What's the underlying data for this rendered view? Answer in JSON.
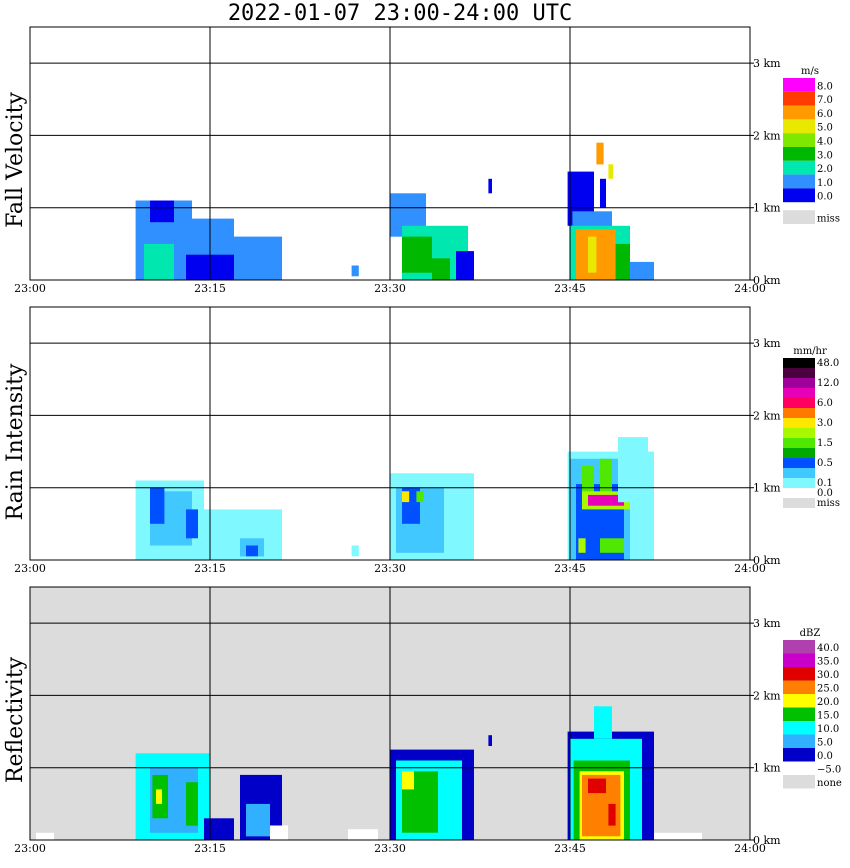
{
  "title": "2022-01-07   23:00-24:00 UTC",
  "chart_data": [
    {
      "type": "heatmap",
      "panel": "Fall Velocity",
      "unit": "m/s",
      "x_axis": {
        "range_minutes": [
          0,
          60
        ],
        "ticks": [
          {
            "label": "23:00",
            "min": 0
          },
          {
            "label": "23:15",
            "min": 15
          },
          {
            "label": "23:30",
            "min": 30
          },
          {
            "label": "23:45",
            "min": 45
          },
          {
            "label": "24:00",
            "min": 60
          }
        ]
      },
      "y_axis": {
        "range_km": [
          0,
          3.5
        ],
        "ticks": [
          {
            "label": "0 km",
            "km": 0
          },
          {
            "label": "1 km",
            "km": 1
          },
          {
            "label": "2 km",
            "km": 2
          },
          {
            "label": "3 km",
            "km": 3
          }
        ]
      },
      "background": "#ffffff",
      "legend": [
        {
          "label": "8.0",
          "color": "#ff00ff"
        },
        {
          "label": "7.0",
          "color": "#ff3b00"
        },
        {
          "label": "6.0",
          "color": "#ff9a00"
        },
        {
          "label": "5.0",
          "color": "#e8e800"
        },
        {
          "label": "4.0",
          "color": "#7fe800"
        },
        {
          "label": "3.0",
          "color": "#00b800"
        },
        {
          "label": "2.0",
          "color": "#00e8b0"
        },
        {
          "label": "1.0",
          "color": "#3090ff"
        },
        {
          "label": "0.0",
          "color": "#0000f0"
        },
        {
          "label": "miss",
          "color": "#dcdcdc",
          "gap": true
        }
      ],
      "cells": [
        {
          "t0": 8.8,
          "t1": 13.5,
          "h0": 0,
          "h1": 1.1,
          "c": "#3090ff"
        },
        {
          "t0": 13.5,
          "t1": 17.0,
          "h0": 0,
          "h1": 0.85,
          "c": "#3090ff"
        },
        {
          "t0": 17.0,
          "t1": 21.0,
          "h0": 0,
          "h1": 0.6,
          "c": "#3090ff"
        },
        {
          "t0": 9.5,
          "t1": 12.0,
          "h0": 0,
          "h1": 0.5,
          "c": "#00e8b0"
        },
        {
          "t0": 13.0,
          "t1": 17.0,
          "h0": 0,
          "h1": 0.35,
          "c": "#0000f0"
        },
        {
          "t0": 10.0,
          "t1": 12.0,
          "h0": 0.8,
          "h1": 1.1,
          "c": "#0000f0"
        },
        {
          "t0": 26.8,
          "t1": 27.4,
          "h0": 0.05,
          "h1": 0.2,
          "c": "#3090ff"
        },
        {
          "t0": 30.0,
          "t1": 33.0,
          "h0": 0.6,
          "h1": 1.2,
          "c": "#3090ff"
        },
        {
          "t0": 31.0,
          "t1": 36.5,
          "h0": 0,
          "h1": 0.75,
          "c": "#00e8b0"
        },
        {
          "t0": 31.0,
          "t1": 33.5,
          "h0": 0.1,
          "h1": 0.6,
          "c": "#00b800"
        },
        {
          "t0": 33.5,
          "t1": 35.0,
          "h0": 0,
          "h1": 0.3,
          "c": "#00b800"
        },
        {
          "t0": 35.5,
          "t1": 37.0,
          "h0": 0,
          "h1": 0.4,
          "c": "#0000f0"
        },
        {
          "t0": 44.8,
          "t1": 47.0,
          "h0": 0.75,
          "h1": 1.5,
          "c": "#0000f0"
        },
        {
          "t0": 45.2,
          "t1": 48.5,
          "h0": 0.7,
          "h1": 0.95,
          "c": "#3090ff"
        },
        {
          "t0": 45.0,
          "t1": 50.0,
          "h0": 0,
          "h1": 0.75,
          "c": "#00e8b0"
        },
        {
          "t0": 45.5,
          "t1": 48.8,
          "h0": 0,
          "h1": 0.7,
          "c": "#ff9a00"
        },
        {
          "t0": 46.5,
          "t1": 47.2,
          "h0": 0.1,
          "h1": 0.6,
          "c": "#e8e800"
        },
        {
          "t0": 48.8,
          "t1": 50.0,
          "h0": 0,
          "h1": 0.5,
          "c": "#00b800"
        },
        {
          "t0": 50.0,
          "t1": 52.0,
          "h0": 0,
          "h1": 0.25,
          "c": "#3090ff"
        },
        {
          "t0": 47.2,
          "t1": 47.8,
          "h0": 1.6,
          "h1": 1.9,
          "c": "#ff9a00"
        },
        {
          "t0": 48.2,
          "t1": 48.6,
          "h0": 1.4,
          "h1": 1.6,
          "c": "#e8e800"
        },
        {
          "t0": 47.5,
          "t1": 48.0,
          "h0": 1.0,
          "h1": 1.4,
          "c": "#0000f0"
        },
        {
          "t0": 38.2,
          "t1": 38.5,
          "h0": 1.2,
          "h1": 1.4,
          "c": "#0000f0"
        }
      ]
    },
    {
      "type": "heatmap",
      "panel": "Rain Intensity",
      "unit": "mm/hr",
      "x_axis": {
        "range_minutes": [
          0,
          60
        ],
        "ticks": [
          {
            "label": "23:00",
            "min": 0
          },
          {
            "label": "23:15",
            "min": 15
          },
          {
            "label": "23:30",
            "min": 30
          },
          {
            "label": "23:45",
            "min": 45
          },
          {
            "label": "24:00",
            "min": 60
          }
        ]
      },
      "y_axis": {
        "range_km": [
          0,
          3.5
        ],
        "ticks": [
          {
            "label": "0 km",
            "km": 0
          },
          {
            "label": "1 km",
            "km": 1
          },
          {
            "label": "2 km",
            "km": 2
          },
          {
            "label": "3 km",
            "km": 3
          }
        ]
      },
      "background": "#ffffff",
      "legend": [
        {
          "label": "48.0",
          "color": "#000000"
        },
        {
          "label": "",
          "color": "#4b0040"
        },
        {
          "label": "12.0",
          "color": "#a0009c"
        },
        {
          "label": "",
          "color": "#e800b8"
        },
        {
          "label": "6.0",
          "color": "#ff0060"
        },
        {
          "label": "",
          "color": "#ff7800"
        },
        {
          "label": "3.0",
          "color": "#ffe800"
        },
        {
          "label": "",
          "color": "#a8f800"
        },
        {
          "label": "1.5",
          "color": "#50e800"
        },
        {
          "label": "",
          "color": "#00a800"
        },
        {
          "label": "0.5",
          "color": "#0050ff"
        },
        {
          "label": "",
          "color": "#40c8ff"
        },
        {
          "label": "0.1",
          "color": "#80f8ff"
        },
        {
          "label": "0.0",
          "color": "#ffffff"
        },
        {
          "label": "miss",
          "color": "#dcdcdc"
        }
      ],
      "cells": [
        {
          "t0": 8.8,
          "t1": 14.5,
          "h0": 0,
          "h1": 1.1,
          "c": "#80f8ff"
        },
        {
          "t0": 14.5,
          "t1": 21.0,
          "h0": 0,
          "h1": 0.7,
          "c": "#80f8ff"
        },
        {
          "t0": 10.0,
          "t1": 13.5,
          "h0": 0.2,
          "h1": 0.95,
          "c": "#40c8ff"
        },
        {
          "t0": 10.0,
          "t1": 11.2,
          "h0": 0.5,
          "h1": 1.0,
          "c": "#0050ff"
        },
        {
          "t0": 13.0,
          "t1": 14.0,
          "h0": 0.3,
          "h1": 0.7,
          "c": "#0050ff"
        },
        {
          "t0": 17.5,
          "t1": 19.5,
          "h0": 0.05,
          "h1": 0.3,
          "c": "#40c8ff"
        },
        {
          "t0": 18.0,
          "t1": 19.0,
          "h0": 0.05,
          "h1": 0.2,
          "c": "#0050ff"
        },
        {
          "t0": 26.8,
          "t1": 27.4,
          "h0": 0.05,
          "h1": 0.2,
          "c": "#80f8ff"
        },
        {
          "t0": 30.0,
          "t1": 37.0,
          "h0": 0,
          "h1": 1.2,
          "c": "#80f8ff"
        },
        {
          "t0": 30.5,
          "t1": 34.5,
          "h0": 0.1,
          "h1": 1.0,
          "c": "#40c8ff"
        },
        {
          "t0": 31.0,
          "t1": 32.5,
          "h0": 0.5,
          "h1": 1.0,
          "c": "#0050ff"
        },
        {
          "t0": 31.0,
          "t1": 31.6,
          "h0": 0.8,
          "h1": 0.95,
          "c": "#ffe800"
        },
        {
          "t0": 32.2,
          "t1": 32.8,
          "h0": 0.8,
          "h1": 0.95,
          "c": "#50e800"
        },
        {
          "t0": 44.8,
          "t1": 52.0,
          "h0": 0,
          "h1": 1.5,
          "c": "#80f8ff"
        },
        {
          "t0": 45.0,
          "t1": 50.0,
          "h0": 0,
          "h1": 1.4,
          "c": "#40c8ff"
        },
        {
          "t0": 45.5,
          "t1": 49.5,
          "h0": 0,
          "h1": 1.05,
          "c": "#0050ff"
        },
        {
          "t0": 46.0,
          "t1": 47.0,
          "h0": 0.85,
          "h1": 1.3,
          "c": "#50e800"
        },
        {
          "t0": 47.5,
          "t1": 48.5,
          "h0": 0.9,
          "h1": 1.4,
          "c": "#50e800"
        },
        {
          "t0": 46.0,
          "t1": 50.0,
          "h0": 0.7,
          "h1": 0.95,
          "c": "#a8f800"
        },
        {
          "t0": 46.5,
          "t1": 49.5,
          "h0": 0.75,
          "h1": 0.9,
          "c": "#e800b8"
        },
        {
          "t0": 47.5,
          "t1": 49.5,
          "h0": 0.1,
          "h1": 0.3,
          "c": "#50e800"
        },
        {
          "t0": 45.7,
          "t1": 46.3,
          "h0": 0.1,
          "h1": 0.3,
          "c": "#a8f800"
        },
        {
          "t0": 49.0,
          "t1": 51.5,
          "h0": 0.8,
          "h1": 1.7,
          "c": "#80f8ff"
        }
      ]
    },
    {
      "type": "heatmap",
      "panel": "Reflectivity",
      "unit": "dBZ",
      "x_axis": {
        "range_minutes": [
          0,
          60
        ],
        "ticks": [
          {
            "label": "23:00",
            "min": 0
          },
          {
            "label": "23:15",
            "min": 15
          },
          {
            "label": "23:30",
            "min": 30
          },
          {
            "label": "23:45",
            "min": 45
          },
          {
            "label": "24:00",
            "min": 60
          }
        ]
      },
      "y_axis": {
        "range_km": [
          0,
          3.5
        ],
        "ticks": [
          {
            "label": "0 km",
            "km": 0
          },
          {
            "label": "1 km",
            "km": 1
          },
          {
            "label": "2 km",
            "km": 2
          },
          {
            "label": "3 km",
            "km": 3
          }
        ]
      },
      "background": "#dcdcdc",
      "legend": [
        {
          "label": "40.0",
          "color": "#b040b0"
        },
        {
          "label": "35.0",
          "color": "#c800c8"
        },
        {
          "label": "30.0",
          "color": "#e00000"
        },
        {
          "label": "25.0",
          "color": "#ff8000"
        },
        {
          "label": "20.0",
          "color": "#ffff00"
        },
        {
          "label": "15.0",
          "color": "#00c000"
        },
        {
          "label": "10.0",
          "color": "#00ffff"
        },
        {
          "label": "5.0",
          "color": "#30b0ff"
        },
        {
          "label": "0.0",
          "color": "#0000c8"
        },
        {
          "label": "−5.0",
          "color": "#ffffff"
        },
        {
          "label": "none",
          "color": "#dcdcdc"
        }
      ],
      "cells": [
        {
          "t0": 8.8,
          "t1": 15.0,
          "h0": 0,
          "h1": 1.2,
          "c": "#00ffff"
        },
        {
          "t0": 10.0,
          "t1": 14.0,
          "h0": 0.1,
          "h1": 1.0,
          "c": "#30b0ff"
        },
        {
          "t0": 10.2,
          "t1": 11.5,
          "h0": 0.3,
          "h1": 0.9,
          "c": "#00c000"
        },
        {
          "t0": 13.0,
          "t1": 14.0,
          "h0": 0.2,
          "h1": 0.8,
          "c": "#00c000"
        },
        {
          "t0": 10.5,
          "t1": 11.0,
          "h0": 0.5,
          "h1": 0.7,
          "c": "#ffff00"
        },
        {
          "t0": 14.5,
          "t1": 17.0,
          "h0": 0,
          "h1": 0.3,
          "c": "#0000c8"
        },
        {
          "t0": 17.5,
          "t1": 21.0,
          "h0": 0,
          "h1": 0.9,
          "c": "#0000c8"
        },
        {
          "t0": 18.0,
          "t1": 20.0,
          "h0": 0.05,
          "h1": 0.5,
          "c": "#30b0ff"
        },
        {
          "t0": 20.0,
          "t1": 21.5,
          "h0": 0,
          "h1": 0.2,
          "c": "#ffffff"
        },
        {
          "t0": 0.5,
          "t1": 2.0,
          "h0": 0,
          "h1": 0.1,
          "c": "#ffffff"
        },
        {
          "t0": 26.5,
          "t1": 29.0,
          "h0": 0,
          "h1": 0.15,
          "c": "#ffffff"
        },
        {
          "t0": 30.0,
          "t1": 37.0,
          "h0": 0,
          "h1": 1.25,
          "c": "#0000c8"
        },
        {
          "t0": 30.5,
          "t1": 36.0,
          "h0": 0,
          "h1": 1.1,
          "c": "#00ffff"
        },
        {
          "t0": 31.0,
          "t1": 34.0,
          "h0": 0.1,
          "h1": 0.95,
          "c": "#00c000"
        },
        {
          "t0": 31.0,
          "t1": 32.0,
          "h0": 0.7,
          "h1": 0.95,
          "c": "#ffff00"
        },
        {
          "t0": 38.2,
          "t1": 38.5,
          "h0": 1.3,
          "h1": 1.45,
          "c": "#0000c8"
        },
        {
          "t0": 44.8,
          "t1": 52.0,
          "h0": 0,
          "h1": 1.5,
          "c": "#0000c8"
        },
        {
          "t0": 45.0,
          "t1": 51.0,
          "h0": 0,
          "h1": 1.4,
          "c": "#00ffff"
        },
        {
          "t0": 45.3,
          "t1": 50.0,
          "h0": 0,
          "h1": 1.1,
          "c": "#00c000"
        },
        {
          "t0": 45.8,
          "t1": 49.5,
          "h0": 0,
          "h1": 0.95,
          "c": "#ffff00"
        },
        {
          "t0": 46.0,
          "t1": 49.2,
          "h0": 0.05,
          "h1": 0.9,
          "c": "#ff8000"
        },
        {
          "t0": 46.5,
          "t1": 48.0,
          "h0": 0.65,
          "h1": 0.85,
          "c": "#e00000"
        },
        {
          "t0": 48.2,
          "t1": 48.8,
          "h0": 0.2,
          "h1": 0.5,
          "c": "#e00000"
        },
        {
          "t0": 47.0,
          "t1": 48.5,
          "h0": 1.4,
          "h1": 1.85,
          "c": "#00ffff"
        },
        {
          "t0": 52.0,
          "t1": 56.0,
          "h0": 0,
          "h1": 0.1,
          "c": "#ffffff"
        }
      ]
    }
  ]
}
